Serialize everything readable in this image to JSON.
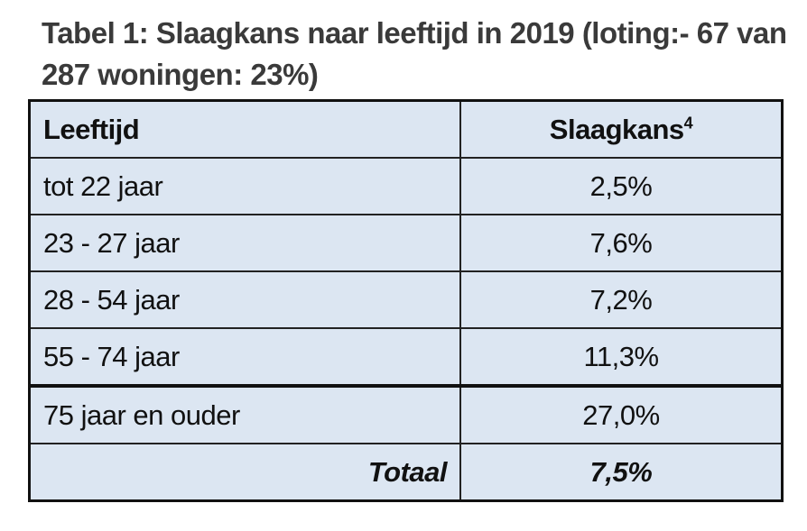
{
  "title": "Tabel 1: Slaagkans naar leeftijd in 2019 (loting:- 67 van 287 woningen: 23%)",
  "table": {
    "headers": {
      "age": "Leeftijd",
      "chance": "Slaagkans",
      "footnote": "4"
    },
    "rows": [
      {
        "age": "tot 22 jaar",
        "chance": "2,5%"
      },
      {
        "age": "23 - 27 jaar",
        "chance": "7,6%"
      },
      {
        "age": "28 - 54 jaar",
        "chance": "7,2%"
      },
      {
        "age": "55 - 74 jaar",
        "chance": "11,3%"
      },
      {
        "age": "75 jaar en ouder",
        "chance": "27,0%"
      }
    ],
    "total": {
      "label": "Totaal",
      "chance": "7,5%"
    }
  },
  "colors": {
    "cell_background": "#dce6f2",
    "title": "#3a3a3a"
  }
}
